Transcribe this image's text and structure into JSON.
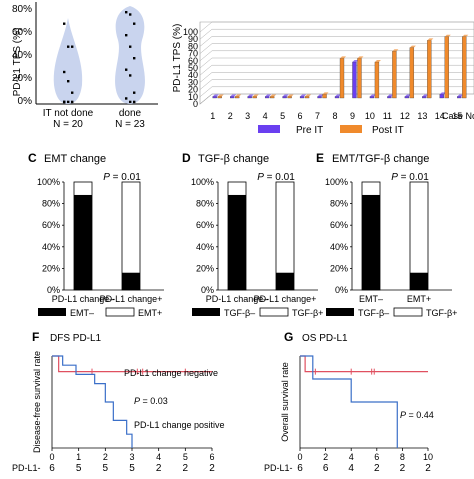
{
  "violin": {
    "ylabel": "PD-L1 TPS (%)",
    "yticks": [
      "0%",
      "20%",
      "40%",
      "60%",
      "80%"
    ],
    "groups": [
      {
        "label": "IT not done",
        "n": "N = 20",
        "points": [
          70,
          50,
          50,
          28,
          20,
          10,
          2,
          2,
          2,
          2
        ]
      },
      {
        "label": "done",
        "n": "N = 23",
        "points": [
          80,
          78,
          70,
          60,
          50,
          40,
          30,
          25,
          10,
          5,
          2,
          2
        ]
      }
    ],
    "fill_color": "#c9d4ee"
  },
  "bar3d": {
    "ylabel": "PD-L1 TPS (%)",
    "yticks": [
      "0",
      "10",
      "20",
      "30",
      "40",
      "50",
      "60",
      "70",
      "80",
      "90",
      "100"
    ],
    "categories": [
      "1",
      "2",
      "3",
      "4",
      "5",
      "6",
      "7",
      "8",
      "9",
      "10",
      "11",
      "12",
      "13",
      "14",
      "15"
    ],
    "xlabel": "Case No",
    "series": [
      {
        "name": "Pre IT",
        "color": "#6a3ff0",
        "values": [
          1,
          1,
          1,
          1,
          1,
          1,
          1,
          1,
          50,
          1,
          1,
          1,
          1,
          5,
          1
        ]
      },
      {
        "name": "Post IT",
        "color": "#f08a2c",
        "values": [
          1,
          1,
          1,
          1,
          1,
          1,
          5,
          55,
          55,
          50,
          65,
          70,
          80,
          85,
          85
        ]
      }
    ]
  },
  "panels": [
    {
      "letter": "C",
      "title": "EMT change",
      "p": "P = 0.01",
      "cats": [
        "PD-L1 change–",
        "PD-L1 change+"
      ],
      "neg_fraction": [
        0.88,
        0.16
      ],
      "legend": [
        "EMT–",
        "EMT+"
      ]
    },
    {
      "letter": "D",
      "title": "TGF-β change",
      "p": "P = 0.01",
      "cats": [
        "PD-L1 change–",
        "PD-L1 change+"
      ],
      "neg_fraction": [
        0.88,
        0.16
      ],
      "legend": [
        "TGF-β–",
        "TGF-β+"
      ]
    },
    {
      "letter": "E",
      "title": "EMT/TGF-β change",
      "p": "P = 0.01",
      "cats": [
        "EMT–",
        "EMT+"
      ],
      "neg_fraction": [
        0.88,
        0.16
      ],
      "legend": [
        "TGF-β–",
        "TGF-β+"
      ]
    }
  ],
  "pct_ticks": [
    "0%",
    "20%",
    "40%",
    "60%",
    "80%",
    "100%"
  ],
  "km": [
    {
      "letter": "F",
      "title": "DFS  PD-L1",
      "ylabel": "Disease-free survival rate",
      "ann_neg": "PD-L1 change negative",
      "ann_p": "P = 0.03",
      "ann_pos": "PD-L1 change positive",
      "xticks": [
        "0",
        "1",
        "2",
        "3",
        "4",
        "5",
        "6"
      ],
      "risk_label": "PD-L1-",
      "risk": [
        "6",
        "5",
        "5",
        "5",
        "2",
        "2",
        "2"
      ],
      "neg_steps": [
        [
          0,
          1
        ],
        [
          0.25,
          0.83
        ],
        [
          6,
          0.83
        ]
      ],
      "neg_censor": [
        1.5,
        3.2,
        3.4,
        5.0
      ],
      "pos_steps": [
        [
          0,
          1
        ],
        [
          0.4,
          0.9
        ],
        [
          0.9,
          0.8
        ],
        [
          1.6,
          0.7
        ],
        [
          2.0,
          0.5
        ],
        [
          2.3,
          0.3
        ],
        [
          2.8,
          0.15
        ],
        [
          3.0,
          0
        ]
      ]
    },
    {
      "letter": "G",
      "title": "OS  PD-L1",
      "ylabel": "Overall survival rate",
      "ann_neg": "",
      "ann_p": "P = 0.44",
      "ann_pos": "",
      "xticks": [
        "0",
        "2",
        "4",
        "6",
        "8",
        "10"
      ],
      "risk_label": "PD-L1-",
      "risk": [
        "6",
        "6",
        "4",
        "2",
        "2",
        "2"
      ],
      "neg_steps": [
        [
          0,
          1
        ],
        [
          0.4,
          0.83
        ],
        [
          10,
          0.83
        ]
      ],
      "neg_censor": [
        1.2,
        4.0,
        5.6,
        5.8
      ],
      "pos_steps": [
        [
          0,
          1
        ],
        [
          1.0,
          0.75
        ],
        [
          4.0,
          0.5
        ],
        [
          7.3,
          0.5
        ],
        [
          7.6,
          0
        ]
      ]
    }
  ]
}
